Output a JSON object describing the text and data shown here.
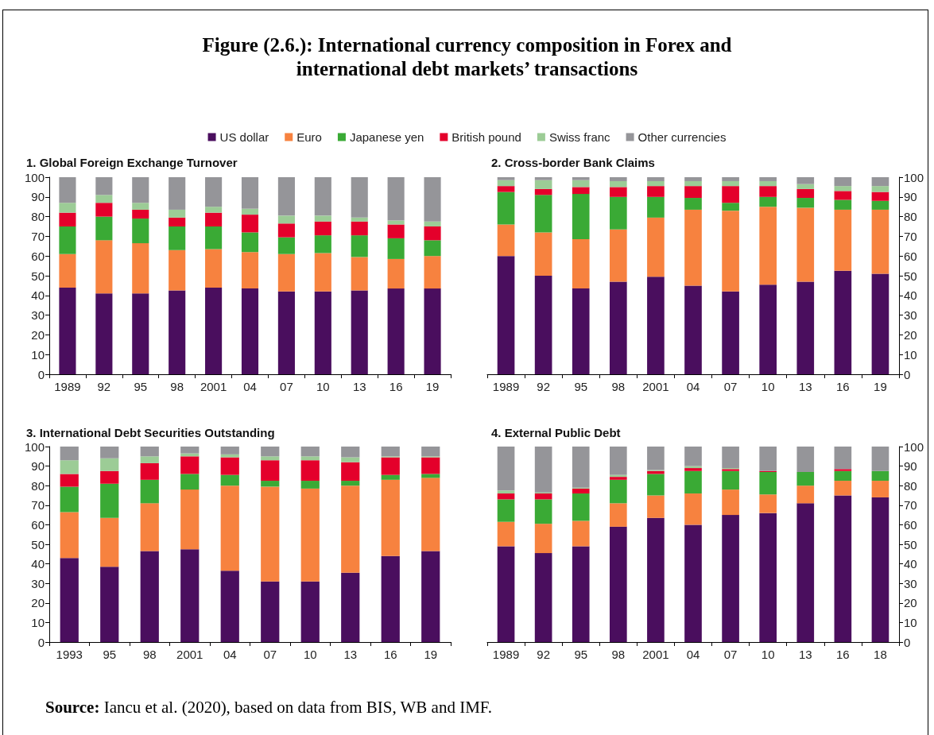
{
  "chart_data": [
    {
      "type": "bar",
      "stacked": true,
      "title": "1. Global Foreign Exchange Turnover",
      "annotations": [
        "Figure (2.6.): International currency composition in Forex and international debt markets’ transactions",
        "Source: Iancu et al. (2020), based on data from BIS, WB and IMF."
      ],
      "legend": "top",
      "grid": false,
      "categories": [
        "1989",
        "92",
        "95",
        "98",
        "2001",
        "04",
        "07",
        "10",
        "13",
        "16",
        "19"
      ],
      "ylim": [
        0,
        100
      ],
      "yticks": [
        0,
        10,
        20,
        30,
        40,
        50,
        60,
        70,
        80,
        90,
        100
      ],
      "series": [
        {
          "name": "US dollar",
          "color": "#4a0e5e",
          "values": [
            44,
            41,
            41,
            42.5,
            44,
            43.5,
            42,
            42,
            42.5,
            43.5,
            43.5
          ]
        },
        {
          "name": "Euro",
          "color": "#f7823f",
          "values": [
            17,
            27,
            25.5,
            20.5,
            19.5,
            18.5,
            19,
            19.5,
            17,
            15,
            16.5
          ]
        },
        {
          "name": "Japanese yen",
          "color": "#3aaa35",
          "values": [
            14,
            12,
            12.5,
            12,
            11.5,
            10,
            8.5,
            9,
            11,
            10.5,
            8
          ]
        },
        {
          "name": "British pound",
          "color": "#e4002b",
          "values": [
            7,
            7,
            4.5,
            4.5,
            7,
            9,
            7,
            7,
            7,
            7,
            7
          ]
        },
        {
          "name": "Swiss franc",
          "color": "#9ccc96",
          "values": [
            5,
            4,
            3.5,
            4,
            3,
            3,
            4,
            3,
            2,
            2,
            2.5
          ]
        },
        {
          "name": "Other currencies",
          "color": "#959599",
          "values": [
            13,
            9,
            13,
            16.5,
            15,
            16,
            19.5,
            19.5,
            20.5,
            22,
            22.5
          ]
        }
      ]
    },
    {
      "type": "bar",
      "stacked": true,
      "title": "2. Cross-border Bank Claims",
      "grid": false,
      "categories": [
        "1989",
        "92",
        "95",
        "98",
        "2001",
        "04",
        "07",
        "10",
        "13",
        "16",
        "19"
      ],
      "y2lim": [
        0,
        100
      ],
      "y2ticks": [
        0,
        10,
        20,
        30,
        40,
        50,
        60,
        70,
        80,
        90,
        100
      ],
      "series": [
        {
          "color": "#4a0e5e",
          "axis": "y2",
          "values": [
            60,
            50,
            43.5,
            47,
            49.5,
            45,
            42,
            45.5,
            47,
            52.5,
            51
          ]
        },
        {
          "color": "#f7823f",
          "axis": "y2",
          "values": [
            16,
            22,
            25,
            26.5,
            30,
            38.5,
            41,
            39.5,
            37.5,
            31,
            32.5
          ]
        },
        {
          "color": "#3aaa35",
          "axis": "y2",
          "values": [
            16.5,
            19,
            23,
            16.5,
            10.5,
            6,
            4,
            5,
            5,
            5,
            4.5
          ]
        },
        {
          "color": "#e4002b",
          "axis": "y2",
          "values": [
            3,
            3,
            3.5,
            5,
            5.5,
            6,
            8.5,
            5.5,
            4.5,
            4.5,
            4.5
          ]
        },
        {
          "color": "#9ccc96",
          "axis": "y2",
          "values": [
            3,
            4.5,
            3.5,
            3,
            2.5,
            2.5,
            2.5,
            2.5,
            2.5,
            2.5,
            3
          ]
        },
        {
          "color": "#959599",
          "axis": "y2",
          "values": [
            1.5,
            1.5,
            1.5,
            2,
            2,
            2,
            2,
            2,
            3.5,
            4.5,
            4.5
          ]
        }
      ]
    },
    {
      "type": "bar",
      "stacked": true,
      "title": "3. International Debt Securities Outstanding",
      "grid": false,
      "categories": [
        "1993",
        "95",
        "98",
        "2001",
        "04",
        "07",
        "10",
        "13",
        "16",
        "19"
      ],
      "ylim": [
        0,
        100
      ],
      "yticks": [
        0,
        10,
        20,
        30,
        40,
        50,
        60,
        70,
        80,
        90,
        100
      ],
      "series": [
        {
          "color": "#4a0e5e",
          "values": [
            43,
            38.5,
            46.5,
            47.5,
            36.5,
            31,
            31,
            35.5,
            44,
            46.5
          ]
        },
        {
          "color": "#f7823f",
          "values": [
            23.5,
            25,
            24.5,
            30.5,
            43.5,
            48.5,
            47.5,
            44.5,
            39,
            37.5
          ]
        },
        {
          "color": "#3aaa35",
          "values": [
            13,
            17.5,
            12,
            8,
            5.5,
            3,
            4,
            2.5,
            2.5,
            2
          ]
        },
        {
          "color": "#e4002b",
          "values": [
            6.5,
            6.5,
            8.5,
            9,
            9,
            10.5,
            10.5,
            9.5,
            9,
            8.5
          ]
        },
        {
          "color": "#9ccc96",
          "values": [
            7,
            6.5,
            3.5,
            1.5,
            1.5,
            2,
            2,
            2.5,
            0.5,
            0.5
          ]
        },
        {
          "color": "#959599",
          "values": [
            7,
            6,
            5,
            3.5,
            4,
            5,
            5,
            5.5,
            5,
            5
          ]
        }
      ]
    },
    {
      "type": "bar",
      "stacked": true,
      "title": "4. External Public Debt",
      "grid": false,
      "categories": [
        "1989",
        "92",
        "95",
        "98",
        "2001",
        "04",
        "07",
        "10",
        "13",
        "16",
        "18"
      ],
      "y2lim": [
        0,
        100
      ],
      "y2ticks": [
        0,
        10,
        20,
        30,
        40,
        50,
        60,
        70,
        80,
        90,
        100
      ],
      "series": [
        {
          "color": "#4a0e5e",
          "axis": "y2",
          "values": [
            49,
            45.5,
            49,
            59,
            63.5,
            60,
            65,
            66,
            71,
            75,
            74
          ]
        },
        {
          "color": "#f7823f",
          "axis": "y2",
          "values": [
            12.5,
            15,
            13,
            12,
            11.5,
            16,
            13,
            9.5,
            9,
            7.5,
            8.5
          ]
        },
        {
          "color": "#3aaa35",
          "axis": "y2",
          "values": [
            11.5,
            12.5,
            14,
            12,
            11,
            11.5,
            9.5,
            11.5,
            7,
            5,
            5
          ]
        },
        {
          "color": "#e4002b",
          "axis": "y2",
          "values": [
            3,
            3,
            2.5,
            1.5,
            1.5,
            1.5,
            1,
            0.5,
            0,
            1,
            0
          ]
        },
        {
          "color": "#9ccc96",
          "axis": "y2",
          "values": [
            1.5,
            0.5,
            0.5,
            1,
            0.5,
            1,
            0.5,
            0,
            0,
            0,
            0
          ]
        },
        {
          "color": "#959599",
          "axis": "y2",
          "values": [
            22.5,
            23.5,
            21,
            14.5,
            12,
            10,
            11,
            12.5,
            13,
            11.5,
            12.5
          ]
        }
      ]
    }
  ]
}
